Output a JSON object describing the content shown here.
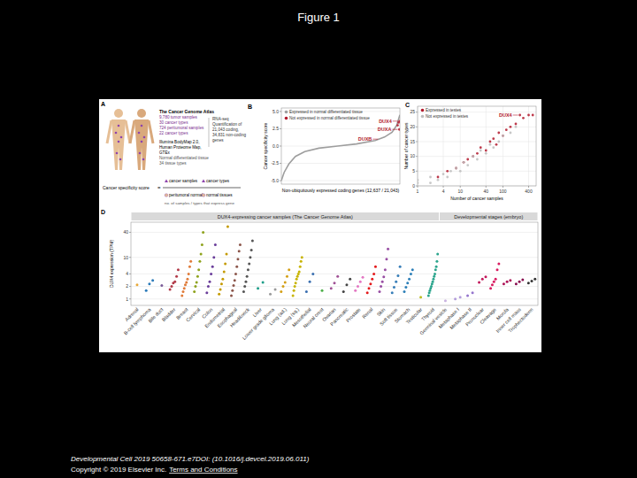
{
  "slide": {
    "title": "Figure 1",
    "footer": "Developmental Cell 2019 50658-671.e7DOI: (10.1016/j.devcel.2019.06.011)",
    "copyright": "Copyright © 2019 Elsevier Inc.",
    "link": "Terms and Conditions"
  },
  "panel_a": {
    "title": "A",
    "tcga": {
      "title": "The Cancer Genome Atlas",
      "lines": [
        "9,780 tumor samples",
        "30 cancer types",
        "724 peritumoral samples",
        "22 cancer types"
      ]
    },
    "normal": {
      "lines": [
        "Illumina BodyMap 2.0,",
        "Human Proteome Map,",
        "GTEx",
        "Normal differentiated tissue",
        "34 tissue types"
      ]
    },
    "quant": [
      "RNA-seq",
      "Quantification of",
      "21,043 coding,",
      "34,831 non-coding",
      "genes"
    ],
    "score": {
      "label": "Cancer specificity score",
      "eq": "=",
      "terms": [
        "cancer samples",
        "cancer types",
        "peritumoral normal",
        "normal tissues"
      ],
      "note": "no. of samples / types that express gene"
    }
  },
  "chart_data": [
    {
      "type": "line",
      "title": "B",
      "x_label": "Non-ubiquitously expressed coding genes (12,637 / 21,043)",
      "y_label": "Cancer specificity score",
      "xlim": [
        0,
        12637
      ],
      "ylim": [
        -5.5,
        5.5
      ],
      "yticks": [
        {
          "value": -5,
          "label": "-5.0"
        },
        {
          "value": -2.5,
          "label": "-2.5"
        },
        {
          "value": 0,
          "label": "0.0"
        },
        {
          "value": 2.5,
          "label": "2.5"
        },
        {
          "value": 5,
          "label": "5.0"
        }
      ],
      "grid": true,
      "legend": "top-left",
      "tick_labels": "y",
      "series": [
        {
          "name": "Expressed in normal differentiated tissue",
          "color": "#9e9e9e",
          "type": "line",
          "x": [
            0,
            300,
            800,
            1500,
            2500,
            4000,
            6000,
            8000,
            10000,
            11000,
            11800,
            12300,
            12637
          ],
          "values": [
            -5,
            -3.8,
            -2.6,
            -1.5,
            -0.8,
            -0.3,
            0,
            0.3,
            0.8,
            1.3,
            2.0,
            3.0,
            4.5
          ]
        },
        {
          "name": "Not expressed in normal differentiated tissue",
          "color": "#b2182b",
          "type": "scatter",
          "marker": "circle",
          "x": [
            12400,
            12500,
            12580,
            12620
          ],
          "values": [
            3.0,
            3.4,
            2.4,
            3.6
          ]
        }
      ],
      "annotations": [
        {
          "text": "DUX4",
          "x": 12620,
          "y": 3.6
        },
        {
          "text": "DUXA",
          "x": 12580,
          "y": 2.4
        },
        {
          "text": "DUXB",
          "x": 10500,
          "y": 1.0
        }
      ]
    },
    {
      "type": "scatter",
      "title": "C",
      "x_label": "Number of cancer samples",
      "y_label": "Number of cancer types",
      "log": "x",
      "xlim": [
        1,
        600
      ],
      "xticks": [
        1,
        4,
        10,
        40,
        100,
        400
      ],
      "ylim": [
        0,
        27
      ],
      "yticks": [
        0,
        5,
        10,
        15,
        20,
        25
      ],
      "grid": true,
      "legend": "top-left",
      "series": [
        {
          "name": "Expressed in testes",
          "color": "#b2182b",
          "marker": "circle",
          "x": [
            3,
            5,
            8,
            12,
            15,
            20,
            25,
            30,
            40,
            50,
            60,
            70,
            80,
            100,
            120,
            150,
            200,
            300,
            400,
            500,
            250
          ],
          "values": [
            3,
            5,
            6,
            8,
            9,
            10,
            11,
            13,
            12,
            15,
            16,
            14,
            18,
            17,
            19,
            20,
            21,
            23,
            24,
            24,
            24
          ]
        },
        {
          "name": "Not expressed in testes",
          "color": "#bdbdbd",
          "marker": "circle",
          "x": [
            1,
            1,
            2,
            2,
            3,
            4,
            5,
            6,
            8,
            10,
            12,
            15,
            20,
            25,
            30,
            40,
            50,
            60,
            80,
            100,
            150,
            200
          ],
          "values": [
            1,
            2,
            1,
            3,
            2,
            4,
            3,
            5,
            6,
            5,
            8,
            7,
            10,
            9,
            12,
            11,
            14,
            13,
            15,
            17,
            18,
            20
          ]
        }
      ],
      "annotations": [
        {
          "text": "DUX4",
          "x": 250,
          "y": 24
        }
      ]
    },
    {
      "type": "strip",
      "y_label": "DUX4 expression (TPM)",
      "title": "D",
      "log": "y",
      "ylim": [
        0.7,
        70
      ],
      "yticks": [
        1,
        2,
        4,
        10,
        40
      ],
      "grid": true,
      "groups": [
        {
          "label": "DUX4-expressing cancer samples (The Cancer Genome Atlas)",
          "from": "Adrenal",
          "to": "Thyroid"
        },
        {
          "label": "Developmental stages (embryo)",
          "from": "Germinal vesicle",
          "to": "Trophectoderm"
        }
      ],
      "categories": [
        "Adrenal",
        "B-cell lymphoma",
        "Bile duct",
        "Bladder",
        "Breast",
        "Cervical",
        "Colon",
        "Endometrial",
        "Esophageal",
        "Head&neck",
        "Liver",
        "Lower grade glioma",
        "Lung (ad.)",
        "Lung (sq.)",
        "Mesothelial",
        "Neural crest",
        "Ovarian",
        "Pancreatic",
        "Prostate",
        "Renal",
        "Skin",
        "Soft tissue",
        "Stomach",
        "Testicular",
        "Thyroid",
        "Germinal vesicle",
        "Metaphase I",
        "Metaphase II",
        "Pronuclear",
        "Cleavage",
        "Morula",
        "Inner cell mass",
        "Trophectoderm"
      ],
      "colors": [
        "#e8a838",
        "#2b7bba",
        "#7a5c99",
        "#b23a48",
        "#e07b39",
        "#8fa31e",
        "#6a3d9a",
        "#c49a00",
        "#8c564b",
        "#555555",
        "#1f9e89",
        "#9a9a9a",
        "#d4a017",
        "#c8b400",
        "#3a6fb0",
        "#4daf4a",
        "#a05195",
        "#444444",
        "#e377c2",
        "#e41a1c",
        "#984ea3",
        "#377eb8",
        "#2c7fb8",
        "#bcbd22",
        "#2ca58d",
        "#c9b3e0",
        "#b39ddb",
        "#9575cd",
        "#c2185b",
        "#d81b60",
        "#ad1457",
        "#880e4f",
        "#333333"
      ],
      "values": [
        [
          2.2
        ],
        [
          1.6,
          2.3,
          2.8
        ],
        [
          2.1
        ],
        [
          1.7,
          2.0,
          2.4,
          2.6,
          3.5,
          5
        ],
        [
          1.2,
          1.5,
          1.8,
          2.2,
          2.5,
          3,
          4,
          6,
          8
        ],
        [
          1.5,
          2,
          2.5,
          3.5,
          5,
          8,
          12,
          20,
          40
        ],
        [
          1.4,
          2,
          2.6,
          4,
          6,
          10,
          20
        ],
        [
          1.3,
          1.7,
          2.3,
          3,
          4.5,
          7,
          12,
          55
        ],
        [
          1.2,
          1.6,
          2.1,
          2.8,
          4,
          6,
          9,
          14,
          20
        ],
        [
          1.5,
          2,
          2.6,
          3.5,
          5,
          7,
          10,
          15,
          25
        ],
        [
          1.8,
          2.5
        ],
        [
          1.3,
          1.7
        ],
        [
          1.5,
          2,
          2.5,
          3.5,
          5
        ],
        [
          1.2,
          1.6,
          2,
          2.4,
          3,
          3.5,
          4,
          4.5,
          6,
          8,
          10
        ],
        [
          1.5,
          2.6,
          4
        ],
        [
          1.6
        ],
        [
          1.8,
          2.4,
          3.5
        ],
        [
          1.5,
          2.2,
          3
        ],
        [
          1.6,
          2,
          2.6,
          3.3
        ],
        [
          1.4,
          1.8,
          2.3,
          3,
          4,
          6
        ],
        [
          1.5,
          2,
          2.6,
          3.4,
          5,
          9,
          16
        ],
        [
          1.4,
          1.9,
          2.6,
          3.6,
          6
        ],
        [
          1.5,
          1.9,
          2.4,
          3,
          4,
          5
        ],
        [
          1.1
        ],
        [
          1.2,
          1.4,
          1.6,
          1.8,
          2,
          2.3,
          2.6,
          3,
          3.5,
          4,
          5,
          6,
          8,
          12
        ],
        [
          0.9
        ],
        [
          1.0,
          1.1
        ],
        [
          1.2,
          1.4
        ],
        [
          2.5,
          3,
          3.4
        ],
        [
          1.8,
          2.2,
          2.6,
          3,
          5,
          7
        ],
        [
          2.3,
          2.6,
          2.8
        ],
        [
          2.3,
          2.6,
          2.9
        ],
        [
          2.4,
          2.7,
          3
        ]
      ]
    }
  ]
}
